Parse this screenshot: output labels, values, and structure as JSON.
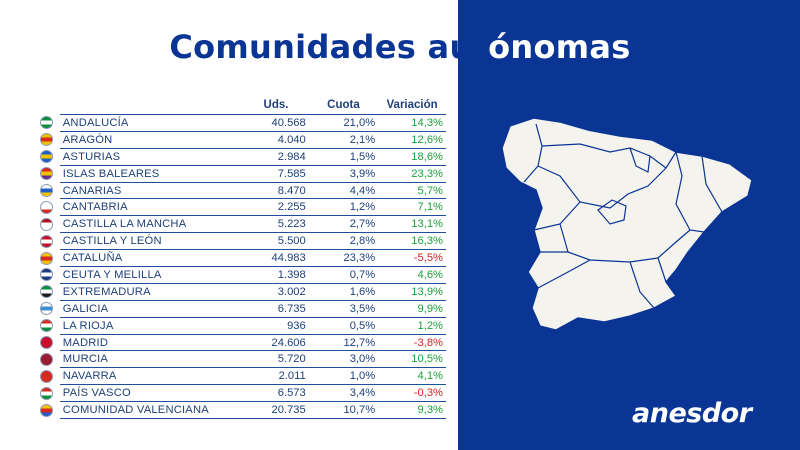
{
  "title": {
    "part_left": "Comunidades aut",
    "part_right": "ónomas"
  },
  "table": {
    "headers": {
      "units": "Uds.",
      "share": "Cuota",
      "variation": "Variación"
    },
    "rows": [
      {
        "name": "ANDALUCÍA",
        "units": "40.568",
        "share": "21,0%",
        "variation": "14,3%",
        "trend": "pos",
        "flag": [
          "#0a8f3c",
          "#ffffff",
          "#0a8f3c"
        ]
      },
      {
        "name": "ARAGÓN",
        "units": "4.040",
        "share": "2,1%",
        "variation": "12,6%",
        "trend": "pos",
        "flag": [
          "#f3c200",
          "#d52b1e",
          "#f3c200"
        ]
      },
      {
        "name": "ASTURIAS",
        "units": "2.984",
        "share": "1,5%",
        "variation": "18,6%",
        "trend": "pos",
        "flag": [
          "#1e5fc9",
          "#f5c400",
          "#1e5fc9"
        ]
      },
      {
        "name": "ISLAS BALEARES",
        "units": "7.585",
        "share": "3,9%",
        "variation": "23,3%",
        "trend": "pos",
        "flag": [
          "#d52b1e",
          "#f3c200",
          "#6a2a8c"
        ]
      },
      {
        "name": "CANARIAS",
        "units": "8.470",
        "share": "4,4%",
        "variation": "5,7%",
        "trend": "pos",
        "flag": [
          "#ffffff",
          "#1e5fc9",
          "#f5c400"
        ]
      },
      {
        "name": "CANTABRIA",
        "units": "2.255",
        "share": "1,2%",
        "variation": "7,1%",
        "trend": "pos",
        "flag": [
          "#ffffff",
          "#ffffff",
          "#d52b1e"
        ]
      },
      {
        "name": "CASTILLA LA MANCHA",
        "units": "5.223",
        "share": "2,7%",
        "variation": "13,1%",
        "trend": "pos",
        "flag": [
          "#b3121d",
          "#ffffff",
          "#ffffff"
        ]
      },
      {
        "name": "CASTILLA Y LEÓN",
        "units": "5.500",
        "share": "2,8%",
        "variation": "16,3%",
        "trend": "pos",
        "flag": [
          "#c8102e",
          "#ffffff",
          "#c8102e"
        ]
      },
      {
        "name": "CATALUÑA",
        "units": "44.983",
        "share": "23,3%",
        "variation": "-5,5%",
        "trend": "neg",
        "flag": [
          "#f3c200",
          "#d52b1e",
          "#f3c200"
        ]
      },
      {
        "name": "CEUTA Y MELILLA",
        "units": "1.398",
        "share": "0,7%",
        "variation": "4,6%",
        "trend": "pos",
        "flag": [
          "#1e3a7a",
          "#ffffff",
          "#1e3a7a"
        ]
      },
      {
        "name": "EXTREMADURA",
        "units": "3.002",
        "share": "1,6%",
        "variation": "13,9%",
        "trend": "pos",
        "flag": [
          "#0a8f3c",
          "#ffffff",
          "#1a1a1a"
        ]
      },
      {
        "name": "GALICIA",
        "units": "6.735",
        "share": "3,5%",
        "variation": "9,9%",
        "trend": "pos",
        "flag": [
          "#ffffff",
          "#3d8fd6",
          "#ffffff"
        ]
      },
      {
        "name": "LA RIOJA",
        "units": "936",
        "share": "0,5%",
        "variation": "1,2%",
        "trend": "pos",
        "flag": [
          "#d52b1e",
          "#ffffff",
          "#0a8f3c"
        ]
      },
      {
        "name": "MADRID",
        "units": "24.606",
        "share": "12,7%",
        "variation": "-3,8%",
        "trend": "neg",
        "flag": [
          "#c8102e",
          "#c8102e",
          "#c8102e"
        ]
      },
      {
        "name": "MURCIA",
        "units": "5.720",
        "share": "3,0%",
        "variation": "10,5%",
        "trend": "pos",
        "flag": [
          "#9b1b30",
          "#9b1b30",
          "#9b1b30"
        ]
      },
      {
        "name": "NAVARRA",
        "units": "2.011",
        "share": "1,0%",
        "variation": "4,1%",
        "trend": "pos",
        "flag": [
          "#d52b1e",
          "#d52b1e",
          "#d52b1e"
        ]
      },
      {
        "name": "PAÍS VASCO",
        "units": "6.573",
        "share": "3,4%",
        "variation": "-0,3%",
        "trend": "neg",
        "flag": [
          "#d52b1e",
          "#ffffff",
          "#0a8f3c"
        ]
      },
      {
        "name": "COMUNIDAD VALENCIANA",
        "units": "20.735",
        "share": "10,7%",
        "variation": "9,3%",
        "trend": "pos",
        "flag": [
          "#f3c200",
          "#d52b1e",
          "#1e5fc9"
        ]
      }
    ]
  },
  "colors": {
    "brand_blue": "#0a3594",
    "positive": "#1aa33a",
    "negative": "#d92323",
    "map_fill": "#f4f3ee"
  },
  "map": {
    "icon": "spain-map-icon"
  },
  "brand": {
    "logo_text": "anesdor"
  }
}
